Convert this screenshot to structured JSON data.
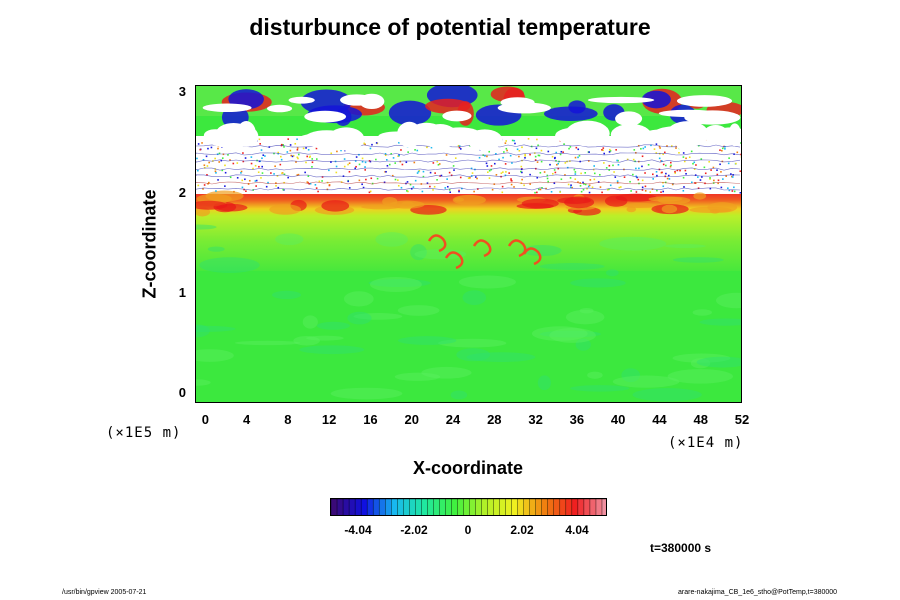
{
  "chart_data": {
    "type": "heatmap",
    "title": "disturbunce of potential temperature",
    "xlabel": "X-coordinate",
    "ylabel": "Z-coordinate",
    "x_range": [
      -1,
      52
    ],
    "y_range": [
      -0.1,
      3.05
    ],
    "x_scale_note": "(×1E4 m)",
    "y_scale_note": "(×1E5 m)",
    "x_ticks": [
      0,
      4,
      8,
      12,
      16,
      20,
      24,
      28,
      32,
      36,
      40,
      44,
      48,
      52
    ],
    "y_ticks": [
      0,
      1,
      2,
      3
    ],
    "colorbar": {
      "min": -5.05,
      "max": 5.05,
      "ticks": [
        "-4.04",
        "-2.02",
        "0",
        "2.02",
        "4.04"
      ],
      "colors": [
        "#3a0a78",
        "#1010e0",
        "#18b8f0",
        "#20e8a0",
        "#40f040",
        "#b0f028",
        "#f0f020",
        "#f08010",
        "#f02020",
        "#f090a0"
      ]
    },
    "time_label": "t=380000 s",
    "regions": [
      {
        "z_min": 0.0,
        "z_max": 1.9,
        "value": 0.5,
        "note": "near-neutral green, mild turbulence"
      },
      {
        "z_min": 1.9,
        "z_max": 2.1,
        "value": 3.2,
        "note": "warm red/yellow layer"
      },
      {
        "z_min": 2.1,
        "z_max": 2.7,
        "value": null,
        "note": "out-of-range (blank) region with noise"
      },
      {
        "z_min": 2.7,
        "z_max": 3.05,
        "value": 0.0,
        "note": "mixed: blue cold and red warm cells"
      }
    ]
  },
  "footer": {
    "left": "/usr/bin/gpview 2005-07-21",
    "right": "arare-nakajima_CB_1e6_stho@PotTemp,t=380000"
  }
}
